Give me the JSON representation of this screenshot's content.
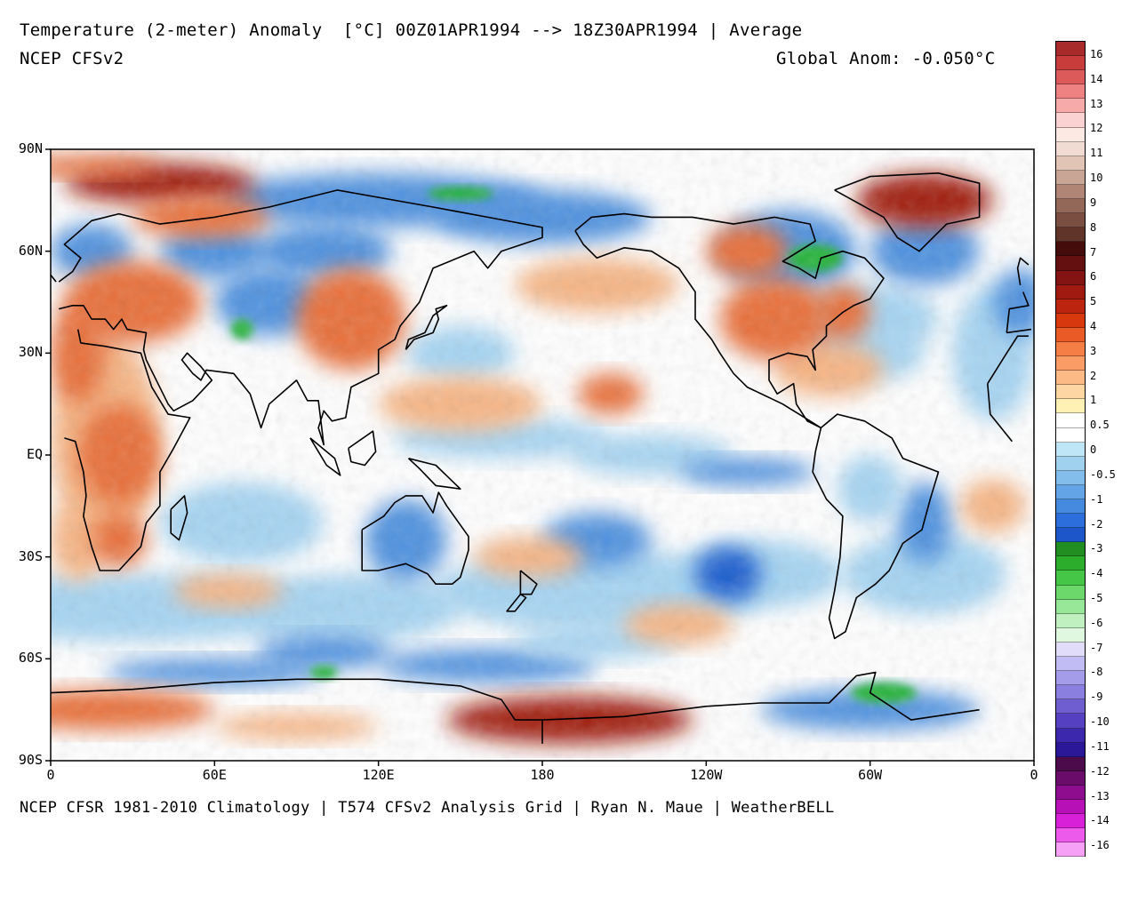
{
  "header": {
    "title": "Temperature (2-meter) Anomaly  [°C] 00Z01APR1994 --> 18Z30APR1994 | Average",
    "model": "NCEP CFSv2",
    "global_anomaly": "Global Anom: -0.050°C"
  },
  "footer": {
    "credits": "NCEP CFSR 1981-2010 Climatology | T574 CFSv2 Analysis Grid | Ryan N. Maue | WeatherBELL"
  },
  "map": {
    "lat_labels": [
      "90N",
      "60N",
      "30N",
      "EQ",
      "30S",
      "60S",
      "90S"
    ],
    "lon_labels": [
      "0",
      "60E",
      "120E",
      "180",
      "120W",
      "60W",
      "0"
    ],
    "colors": {
      "strong_warm": "#a01a10",
      "warm": "#e8703a",
      "mild_warm": "#f6b585",
      "neutral": "#ffffff",
      "mild_cool": "#a6d4f2",
      "cool": "#4f92df",
      "strong_cool": "#1f5fcf",
      "green": "#28b43a",
      "coast": "#000000"
    }
  },
  "colorbar": {
    "labels": [
      "16",
      "14",
      "13",
      "12",
      "11",
      "10",
      "9",
      "8",
      "7",
      "6",
      "5",
      "4",
      "3",
      "2",
      "1",
      "0.5",
      "0",
      "-0.5",
      "-1",
      "-2",
      "-3",
      "-4",
      "-5",
      "-6",
      "-7",
      "-8",
      "-9",
      "-10",
      "-11",
      "-12",
      "-13",
      "-14",
      "-16"
    ],
    "colors": [
      "#a82a2a",
      "#c83c3c",
      "#dc5a5a",
      "#ee8282",
      "#f6aaaa",
      "#fbd2d2",
      "#fde9e4",
      "#f0dcd2",
      "#e2c4b6",
      "#c9a595",
      "#b08575",
      "#946858",
      "#7a4e40",
      "#603428",
      "#450c0c",
      "#641010",
      "#841414",
      "#a01a12",
      "#bc2410",
      "#d8380e",
      "#ea5a26",
      "#f47e46",
      "#f99c66",
      "#fbba86",
      "#fdd6a4",
      "#fff0b4",
      "#ffffff",
      "#ffffff",
      "#bfe6f6",
      "#a0d2f0",
      "#82bdec",
      "#62a4e6",
      "#468ae0",
      "#2c6edb",
      "#1c56c8",
      "#228e22",
      "#2cae2c",
      "#46c646",
      "#6cd86c",
      "#98e698",
      "#c0f0c0",
      "#e0f8e0",
      "#e0dcfa",
      "#c2bcf4",
      "#a49ce8",
      "#8a7ede",
      "#6e5ed0",
      "#5440c0",
      "#3c28ac",
      "#2a1898",
      "#4c0c4c",
      "#6a0c6a",
      "#8e0c8e",
      "#b610b6",
      "#d820d8",
      "#ec5aec",
      "#f6a0f6"
    ]
  }
}
